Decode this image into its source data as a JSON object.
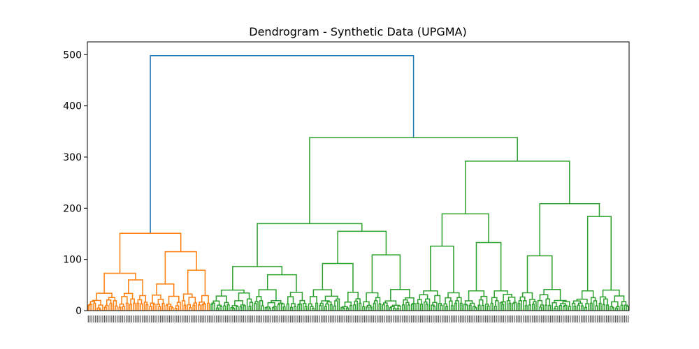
{
  "chart_data": {
    "type": "dendrogram",
    "title": "Dendrogram - Synthetic Data (UPGMA)",
    "xlabel": "",
    "ylabel": "",
    "ylim": [
      0,
      525
    ],
    "yticks": [
      0,
      100,
      200,
      300,
      400,
      500
    ],
    "grid": false,
    "leaf_count": 300,
    "colors": {
      "cluster_1": "#ff7f0e",
      "cluster_2": "#2ca02c",
      "root": "#1f77b4",
      "axes": "#000000"
    },
    "root": {
      "height": 498,
      "left_child_height": 151,
      "right_child_height": 338
    },
    "cluster_1": {
      "leaves": 68,
      "height": 151,
      "subclusters": [
        {
          "height": 73,
          "children": [
            34,
            60
          ]
        },
        {
          "height": 115,
          "children": [
            52,
            79
          ]
        }
      ]
    },
    "cluster_2": {
      "leaves": 232,
      "height": 338,
      "subclusters": [
        {
          "height": 170,
          "children": [
            86,
            155
          ],
          "grandchildren": [
            [
              40,
              70
            ],
            [
              92,
              109
            ]
          ]
        },
        {
          "height": 292,
          "children": [
            189,
            209
          ],
          "grandchildren": [
            [
              126,
              133
            ],
            [
              107,
              184
            ]
          ]
        }
      ]
    }
  }
}
